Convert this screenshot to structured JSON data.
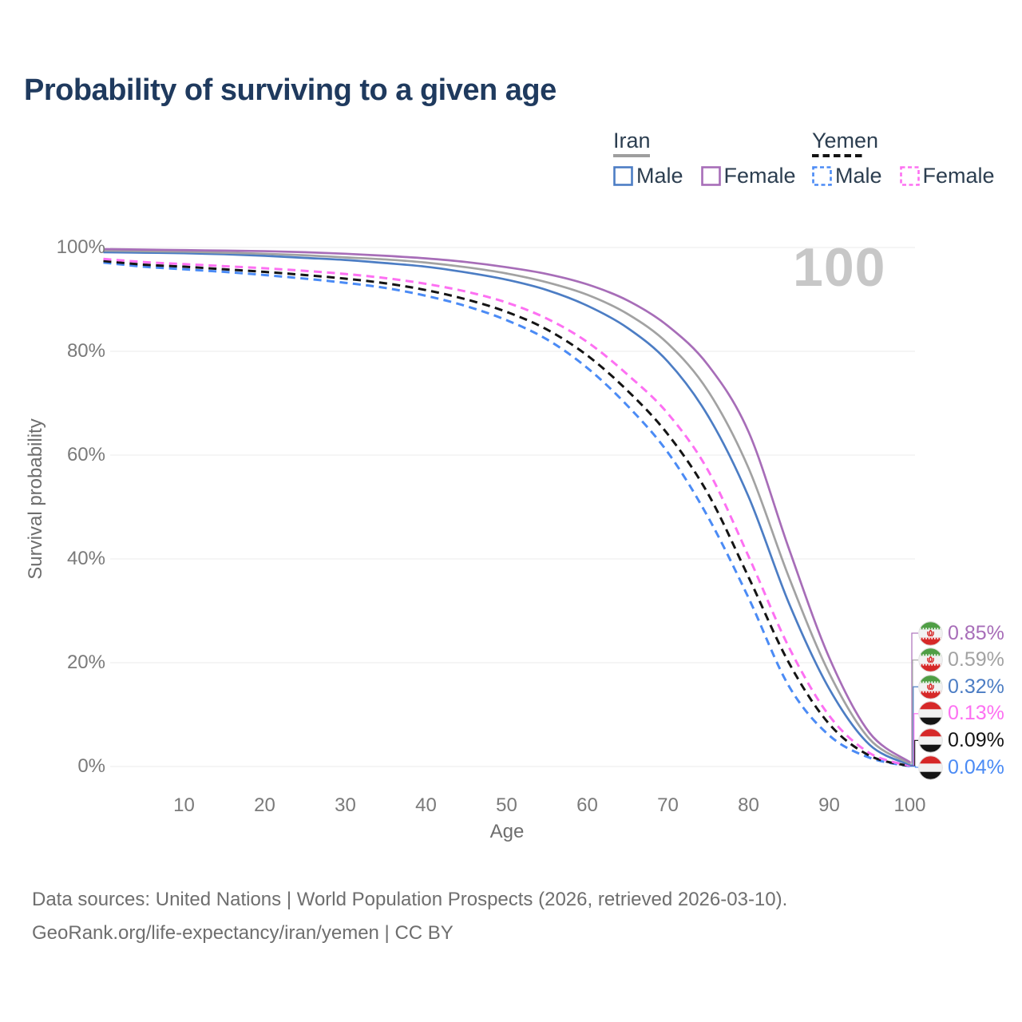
{
  "header": {
    "title": "Probability of surviving to a given age"
  },
  "watermark": "100",
  "legend": {
    "groups": [
      {
        "name": "Iran",
        "line_style": "solid",
        "line_color": "#9e9e9e",
        "items": [
          {
            "label": "Male",
            "color": "#4c7dc4",
            "dashed": false
          },
          {
            "label": "Female",
            "color": "#a76db8",
            "dashed": false
          }
        ]
      },
      {
        "name": "Yemen",
        "line_style": "dashed",
        "line_color": "#141414",
        "items": [
          {
            "label": "Male",
            "color": "#4b8bf5",
            "dashed": true
          },
          {
            "label": "Female",
            "color": "#fd70f2",
            "dashed": true
          }
        ]
      }
    ]
  },
  "chart_data": {
    "type": "line",
    "title": "Probability of surviving to a given age",
    "xlabel": "Age",
    "ylabel": "Survival probability",
    "xlim": [
      0,
      100
    ],
    "ylim": [
      0,
      100
    ],
    "grid": "horizontal",
    "legend_position": "top-right",
    "x_ticks": [
      10,
      20,
      30,
      40,
      50,
      60,
      70,
      80,
      90,
      100
    ],
    "y_ticks": [
      {
        "value": 0,
        "label": "0%"
      },
      {
        "value": 20,
        "label": "20%"
      },
      {
        "value": 40,
        "label": "40%"
      },
      {
        "value": 60,
        "label": "60%"
      },
      {
        "value": 80,
        "label": "80%"
      },
      {
        "value": 100,
        "label": "100%"
      }
    ],
    "ages": [
      0,
      5,
      10,
      15,
      20,
      25,
      30,
      35,
      40,
      45,
      50,
      55,
      60,
      65,
      70,
      75,
      80,
      85,
      90,
      95,
      100
    ],
    "series": [
      {
        "id": "iran-female",
        "country": "Iran",
        "sex": "Female",
        "style": "solid",
        "color": "#a76db8",
        "flag": "iran",
        "end_label": "0.85%",
        "values": [
          99.7,
          99.6,
          99.5,
          99.4,
          99.3,
          99.1,
          98.8,
          98.4,
          97.9,
          97.2,
          96.2,
          94.9,
          92.9,
          89.8,
          84.9,
          77.3,
          64.5,
          42.0,
          21.0,
          6.5,
          0.85
        ]
      },
      {
        "id": "iran-combined",
        "country": "Iran",
        "sex": "Both sexes",
        "style": "solid",
        "color": "#a2a2a2",
        "flag": "iran",
        "end_label": "0.59%",
        "values": [
          99.4,
          99.3,
          99.2,
          99.0,
          98.8,
          98.5,
          98.1,
          97.7,
          97.1,
          96.2,
          95.0,
          93.3,
          90.9,
          87.2,
          81.5,
          72.3,
          57.5,
          36.5,
          18.0,
          5.3,
          0.59
        ]
      },
      {
        "id": "iran-male",
        "country": "Iran",
        "sex": "Male",
        "style": "solid",
        "color": "#4c7dc4",
        "flag": "iran",
        "end_label": "0.32%",
        "values": [
          99.1,
          99.0,
          98.9,
          98.7,
          98.4,
          98.0,
          97.6,
          97.0,
          96.3,
          95.2,
          93.8,
          91.8,
          88.8,
          84.5,
          78.0,
          67.5,
          52.0,
          31.5,
          15.0,
          4.2,
          0.32
        ]
      },
      {
        "id": "yemen-female",
        "country": "Yemen",
        "sex": "Female",
        "style": "dashed",
        "color": "#fd70f2",
        "flag": "yemen",
        "end_label": "0.13%",
        "values": [
          97.8,
          97.2,
          96.8,
          96.4,
          96.0,
          95.5,
          94.9,
          94.1,
          93.0,
          91.5,
          89.4,
          86.3,
          81.8,
          75.5,
          68.0,
          57.0,
          40.5,
          23.0,
          9.8,
          2.6,
          0.13
        ]
      },
      {
        "id": "yemen-combined",
        "country": "Yemen",
        "sex": "Both sexes",
        "style": "dashed",
        "color": "#141414",
        "flag": "yemen",
        "end_label": "0.09%",
        "values": [
          97.4,
          96.7,
          96.3,
          95.8,
          95.3,
          94.7,
          94.0,
          93.1,
          91.8,
          90.0,
          87.6,
          84.2,
          79.2,
          72.4,
          64.0,
          52.5,
          36.5,
          20.0,
          8.2,
          2.1,
          0.09
        ]
      },
      {
        "id": "yemen-male",
        "country": "Yemen",
        "sex": "Male",
        "style": "dashed",
        "color": "#4b8bf5",
        "flag": "yemen",
        "end_label": "0.04%",
        "values": [
          97.1,
          96.3,
          95.8,
          95.3,
          94.7,
          94.0,
          93.2,
          92.2,
          90.7,
          88.7,
          86.0,
          82.3,
          76.8,
          69.5,
          60.5,
          48.0,
          32.5,
          15.5,
          6.0,
          1.7,
          0.04
        ]
      }
    ]
  },
  "palette": {
    "title": "#1f3a5e",
    "legend_text": "#2c3e50",
    "axis_text": "#7a7a7a",
    "axis_title": "#6e6e6e",
    "footer_text": "#6e6e6e",
    "watermark": "#c7c7c7",
    "grid": "#ebebeb",
    "flags": {
      "iran": {
        "top": "#4f9e45",
        "mid": "#f2f2f2",
        "bottom": "#d62828",
        "emblem": "#d62828"
      },
      "yemen": {
        "top": "#d62828",
        "mid": "#f2f2f2",
        "bottom": "#151515"
      }
    }
  },
  "footer": {
    "line1": "Data sources: United Nations | World Population Prospects (2026, retrieved 2026-03-10).",
    "line2": "GeoRank.org/life-expectancy/iran/yemen | CC BY"
  }
}
